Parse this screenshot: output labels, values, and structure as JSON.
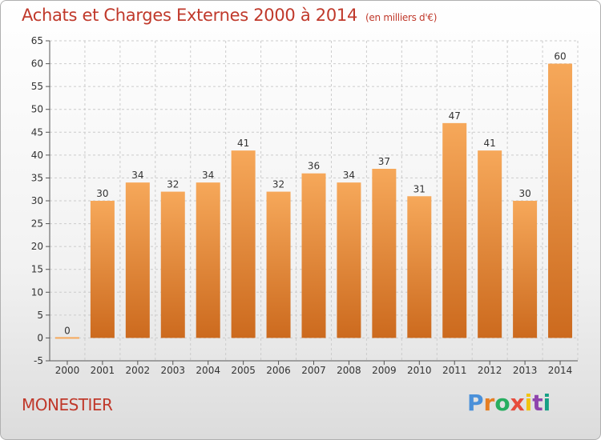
{
  "header": {
    "title": "Achats et Charges Externes 2000 à 2014",
    "unit": "(en milliers d'€)"
  },
  "footer": {
    "commune": "MONESTIER",
    "brand": "Proxiti"
  },
  "colors": {
    "title": "#c0392b",
    "bar_light": "#f6a85a",
    "bar_dark": "#cc6a1e",
    "grid": "#cccccc",
    "brand_letters": [
      "#4a90d9",
      "#e67e22",
      "#27ae60",
      "#e74c3c",
      "#f1c40f",
      "#8e44ad",
      "#16a085"
    ]
  },
  "chart_data": {
    "type": "bar",
    "title": "Achats et Charges Externes 2000 à 2014",
    "subtitle": "(en milliers d'€)",
    "categories": [
      "2000",
      "2001",
      "2002",
      "2003",
      "2004",
      "2005",
      "2006",
      "2007",
      "2008",
      "2009",
      "2010",
      "2011",
      "2012",
      "2013",
      "2014"
    ],
    "values": [
      0,
      30,
      34,
      32,
      34,
      41,
      32,
      36,
      34,
      37,
      31,
      47,
      41,
      30,
      60
    ],
    "ylim": [
      -5,
      65
    ],
    "yticks": [
      -5,
      0,
      5,
      10,
      15,
      20,
      25,
      30,
      35,
      40,
      45,
      50,
      55,
      60,
      65
    ],
    "grid": true,
    "legend": "none"
  }
}
